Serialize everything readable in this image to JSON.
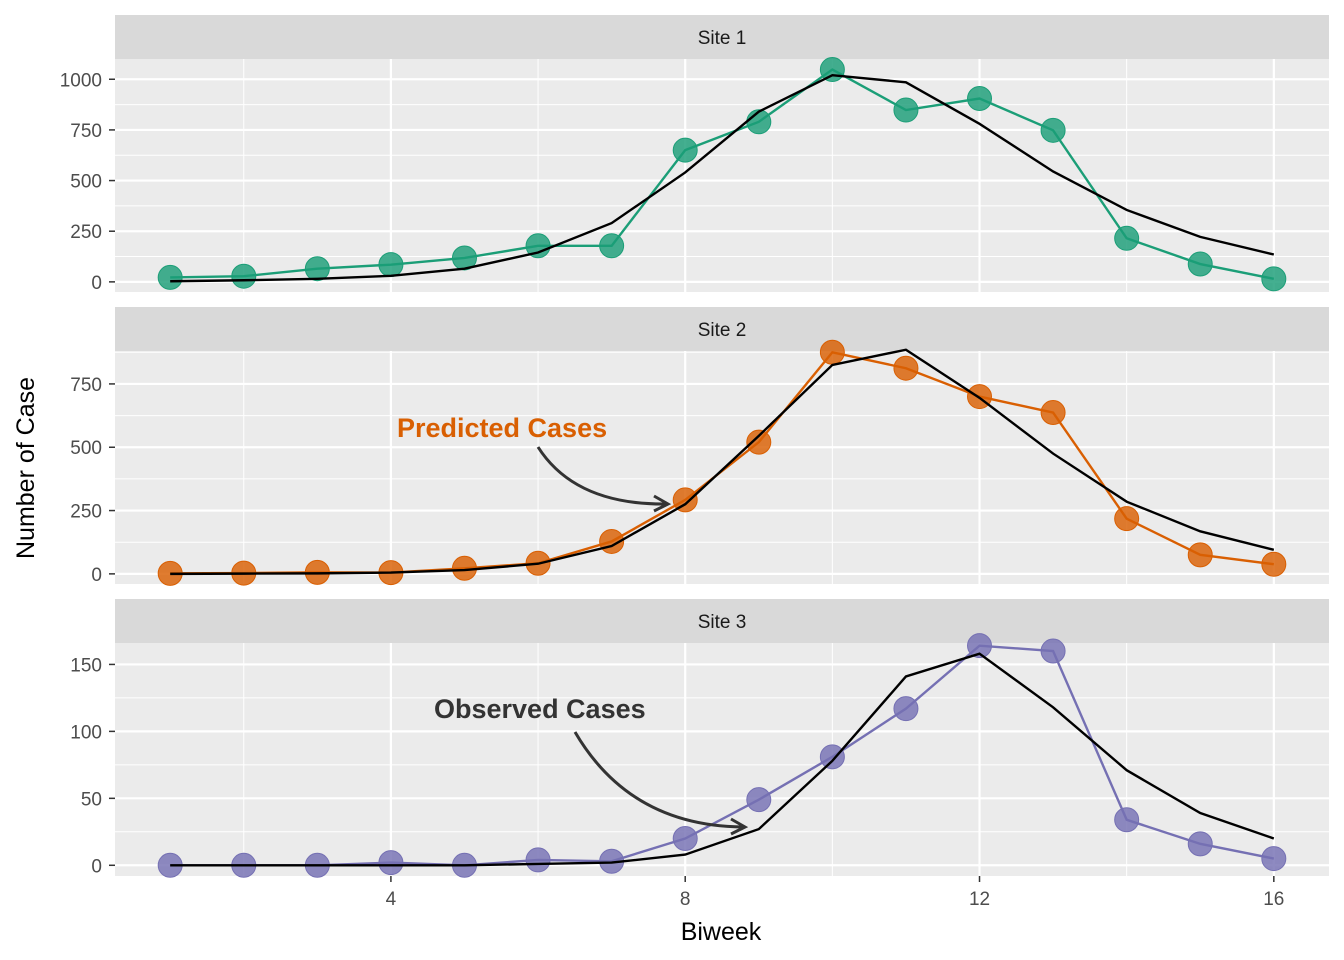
{
  "chart_data": {
    "type": "line",
    "xlabel": "Biweek",
    "ylabel": "Number of Case",
    "xlim": [
      0.25,
      16.75
    ],
    "x_ticks": [
      4,
      8,
      12,
      16
    ],
    "x": [
      1,
      2,
      3,
      4,
      5,
      6,
      7,
      8,
      9,
      10,
      11,
      12,
      13,
      14,
      15,
      16
    ],
    "predicted_color": "#000000",
    "grid": true,
    "panels": [
      {
        "strip": "Site 1",
        "color": "#1b9e77",
        "ylim": [
          -50,
          1100
        ],
        "y_ticks": [
          0,
          250,
          500,
          750,
          1000
        ],
        "observed": [
          22,
          28,
          65,
          85,
          118,
          178,
          178,
          650,
          790,
          1048,
          848,
          905,
          748,
          215,
          88,
          15
        ],
        "predicted": [
          3,
          8,
          15,
          30,
          65,
          145,
          290,
          540,
          840,
          1020,
          985,
          780,
          545,
          355,
          222,
          135
        ]
      },
      {
        "strip": "Site 2",
        "color": "#d95f02",
        "ylim": [
          -40,
          880
        ],
        "y_ticks": [
          0,
          250,
          500,
          750
        ],
        "observed": [
          2,
          3,
          6,
          5,
          22,
          42,
          128,
          292,
          520,
          875,
          812,
          700,
          637,
          218,
          75,
          38
        ],
        "predicted": [
          0,
          1,
          2,
          5,
          15,
          40,
          110,
          275,
          545,
          825,
          885,
          695,
          475,
          285,
          168,
          95
        ]
      },
      {
        "strip": "Site 3",
        "color": "#7570b3",
        "ylim": [
          -8,
          166
        ],
        "y_ticks": [
          0,
          50,
          100,
          150
        ],
        "observed": [
          0,
          0,
          0,
          2,
          0,
          4,
          3,
          20,
          49,
          81,
          117,
          164,
          160,
          34,
          16,
          5
        ],
        "predicted": [
          0,
          0,
          0,
          0,
          0,
          1,
          2,
          8,
          27,
          78,
          141,
          158,
          118,
          71,
          39,
          20
        ]
      }
    ],
    "annotations": [
      {
        "text": "Predicted Cases",
        "panel": 1,
        "color": "#d95f02"
      },
      {
        "text": "Observed Cases",
        "panel": 2,
        "color": "#333333"
      }
    ]
  }
}
